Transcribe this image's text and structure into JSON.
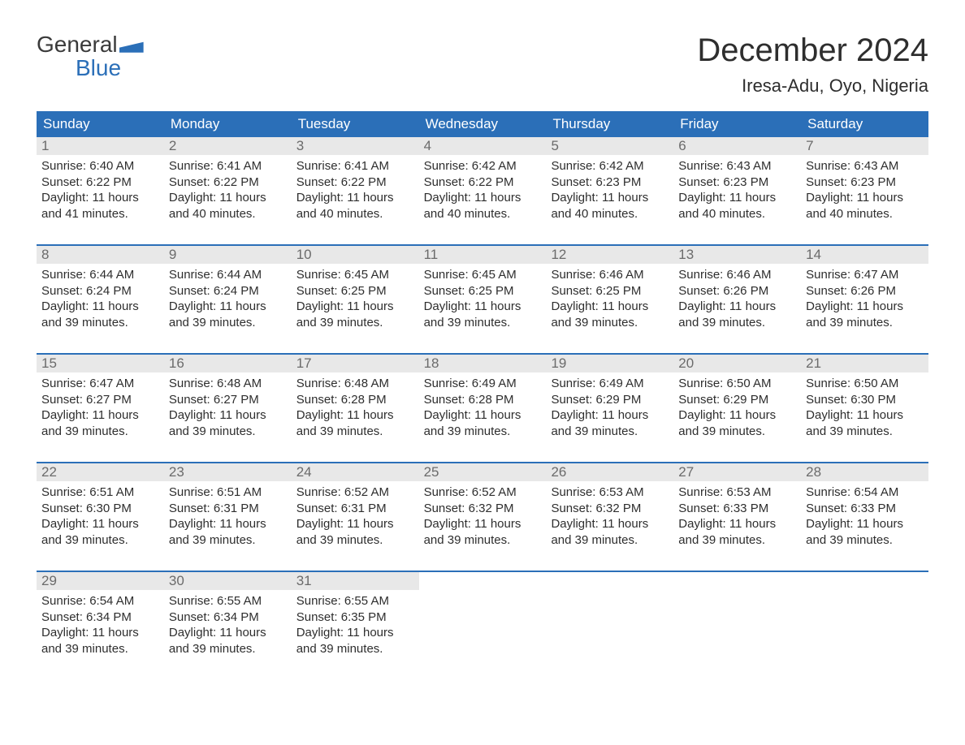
{
  "logo": {
    "line1": "General",
    "line2": "Blue"
  },
  "title": "December 2024",
  "location": "Iresa-Adu, Oyo, Nigeria",
  "colors": {
    "brand_blue": "#2b6fb8",
    "header_text": "#ffffff",
    "daynum_bg": "#e8e8e8",
    "daynum_text": "#6b6b6b",
    "body_text": "#2e2e2e",
    "background": "#ffffff"
  },
  "typography": {
    "title_fontsize": 40,
    "location_fontsize": 22,
    "weekday_fontsize": 17,
    "daynum_fontsize": 17,
    "body_fontsize": 15
  },
  "weekdays": [
    "Sunday",
    "Monday",
    "Tuesday",
    "Wednesday",
    "Thursday",
    "Friday",
    "Saturday"
  ],
  "labels": {
    "sunrise": "Sunrise:",
    "sunset": "Sunset:",
    "daylight": "Daylight:"
  },
  "weeks": [
    [
      {
        "day": "1",
        "sunrise": "6:40 AM",
        "sunset": "6:22 PM",
        "daylight1": "11 hours",
        "daylight2": "and 41 minutes."
      },
      {
        "day": "2",
        "sunrise": "6:41 AM",
        "sunset": "6:22 PM",
        "daylight1": "11 hours",
        "daylight2": "and 40 minutes."
      },
      {
        "day": "3",
        "sunrise": "6:41 AM",
        "sunset": "6:22 PM",
        "daylight1": "11 hours",
        "daylight2": "and 40 minutes."
      },
      {
        "day": "4",
        "sunrise": "6:42 AM",
        "sunset": "6:22 PM",
        "daylight1": "11 hours",
        "daylight2": "and 40 minutes."
      },
      {
        "day": "5",
        "sunrise": "6:42 AM",
        "sunset": "6:23 PM",
        "daylight1": "11 hours",
        "daylight2": "and 40 minutes."
      },
      {
        "day": "6",
        "sunrise": "6:43 AM",
        "sunset": "6:23 PM",
        "daylight1": "11 hours",
        "daylight2": "and 40 minutes."
      },
      {
        "day": "7",
        "sunrise": "6:43 AM",
        "sunset": "6:23 PM",
        "daylight1": "11 hours",
        "daylight2": "and 40 minutes."
      }
    ],
    [
      {
        "day": "8",
        "sunrise": "6:44 AM",
        "sunset": "6:24 PM",
        "daylight1": "11 hours",
        "daylight2": "and 39 minutes."
      },
      {
        "day": "9",
        "sunrise": "6:44 AM",
        "sunset": "6:24 PM",
        "daylight1": "11 hours",
        "daylight2": "and 39 minutes."
      },
      {
        "day": "10",
        "sunrise": "6:45 AM",
        "sunset": "6:25 PM",
        "daylight1": "11 hours",
        "daylight2": "and 39 minutes."
      },
      {
        "day": "11",
        "sunrise": "6:45 AM",
        "sunset": "6:25 PM",
        "daylight1": "11 hours",
        "daylight2": "and 39 minutes."
      },
      {
        "day": "12",
        "sunrise": "6:46 AM",
        "sunset": "6:25 PM",
        "daylight1": "11 hours",
        "daylight2": "and 39 minutes."
      },
      {
        "day": "13",
        "sunrise": "6:46 AM",
        "sunset": "6:26 PM",
        "daylight1": "11 hours",
        "daylight2": "and 39 minutes."
      },
      {
        "day": "14",
        "sunrise": "6:47 AM",
        "sunset": "6:26 PM",
        "daylight1": "11 hours",
        "daylight2": "and 39 minutes."
      }
    ],
    [
      {
        "day": "15",
        "sunrise": "6:47 AM",
        "sunset": "6:27 PM",
        "daylight1": "11 hours",
        "daylight2": "and 39 minutes."
      },
      {
        "day": "16",
        "sunrise": "6:48 AM",
        "sunset": "6:27 PM",
        "daylight1": "11 hours",
        "daylight2": "and 39 minutes."
      },
      {
        "day": "17",
        "sunrise": "6:48 AM",
        "sunset": "6:28 PM",
        "daylight1": "11 hours",
        "daylight2": "and 39 minutes."
      },
      {
        "day": "18",
        "sunrise": "6:49 AM",
        "sunset": "6:28 PM",
        "daylight1": "11 hours",
        "daylight2": "and 39 minutes."
      },
      {
        "day": "19",
        "sunrise": "6:49 AM",
        "sunset": "6:29 PM",
        "daylight1": "11 hours",
        "daylight2": "and 39 minutes."
      },
      {
        "day": "20",
        "sunrise": "6:50 AM",
        "sunset": "6:29 PM",
        "daylight1": "11 hours",
        "daylight2": "and 39 minutes."
      },
      {
        "day": "21",
        "sunrise": "6:50 AM",
        "sunset": "6:30 PM",
        "daylight1": "11 hours",
        "daylight2": "and 39 minutes."
      }
    ],
    [
      {
        "day": "22",
        "sunrise": "6:51 AM",
        "sunset": "6:30 PM",
        "daylight1": "11 hours",
        "daylight2": "and 39 minutes."
      },
      {
        "day": "23",
        "sunrise": "6:51 AM",
        "sunset": "6:31 PM",
        "daylight1": "11 hours",
        "daylight2": "and 39 minutes."
      },
      {
        "day": "24",
        "sunrise": "6:52 AM",
        "sunset": "6:31 PM",
        "daylight1": "11 hours",
        "daylight2": "and 39 minutes."
      },
      {
        "day": "25",
        "sunrise": "6:52 AM",
        "sunset": "6:32 PM",
        "daylight1": "11 hours",
        "daylight2": "and 39 minutes."
      },
      {
        "day": "26",
        "sunrise": "6:53 AM",
        "sunset": "6:32 PM",
        "daylight1": "11 hours",
        "daylight2": "and 39 minutes."
      },
      {
        "day": "27",
        "sunrise": "6:53 AM",
        "sunset": "6:33 PM",
        "daylight1": "11 hours",
        "daylight2": "and 39 minutes."
      },
      {
        "day": "28",
        "sunrise": "6:54 AM",
        "sunset": "6:33 PM",
        "daylight1": "11 hours",
        "daylight2": "and 39 minutes."
      }
    ],
    [
      {
        "day": "29",
        "sunrise": "6:54 AM",
        "sunset": "6:34 PM",
        "daylight1": "11 hours",
        "daylight2": "and 39 minutes."
      },
      {
        "day": "30",
        "sunrise": "6:55 AM",
        "sunset": "6:34 PM",
        "daylight1": "11 hours",
        "daylight2": "and 39 minutes."
      },
      {
        "day": "31",
        "sunrise": "6:55 AM",
        "sunset": "6:35 PM",
        "daylight1": "11 hours",
        "daylight2": "and 39 minutes."
      },
      {
        "empty": true
      },
      {
        "empty": true
      },
      {
        "empty": true
      },
      {
        "empty": true
      }
    ]
  ]
}
